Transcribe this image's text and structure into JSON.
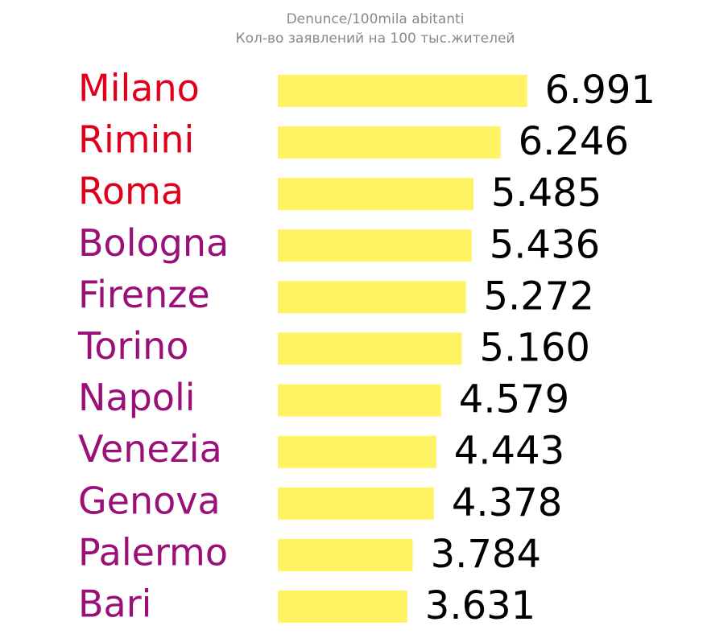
{
  "chart_data": {
    "type": "bar",
    "orientation": "horizontal",
    "title": "Denunce/100mila abitanti",
    "subtitle": "Кол-во заявлений на 100 тыс.жителей",
    "categories": [
      "Milano",
      "Rimini",
      "Roma",
      "Bologna",
      "Firenze",
      "Torino",
      "Napoli",
      "Venezia",
      "Genova",
      "Palermo",
      "Bari"
    ],
    "category_colors": [
      "#e0001b",
      "#e0001b",
      "#e0001b",
      "#9a0f78",
      "#9a0f78",
      "#9a0f78",
      "#9a0f78",
      "#9a0f78",
      "#9a0f78",
      "#9a0f78",
      "#9a0f78"
    ],
    "values": [
      6991,
      6246,
      5485,
      5436,
      5272,
      5160,
      4579,
      4443,
      4378,
      3784,
      3631
    ],
    "value_labels": [
      "6.991",
      "6.246",
      "5.485",
      "5.436",
      "5.272",
      "5.160",
      "4.579",
      "4.443",
      "4.378",
      "3.784",
      "3.631"
    ],
    "color": "#fff263",
    "xlim": [
      0,
      7000
    ]
  }
}
